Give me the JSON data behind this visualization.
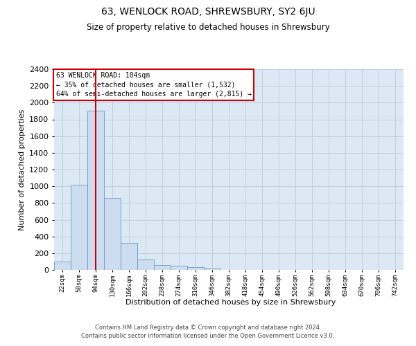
{
  "title": "63, WENLOCK ROAD, SHREWSBURY, SY2 6JU",
  "subtitle": "Size of property relative to detached houses in Shrewsbury",
  "xlabel": "Distribution of detached houses by size in Shrewsbury",
  "ylabel": "Number of detached properties",
  "bar_color": "#cddcee",
  "bar_edge_color": "#6699cc",
  "grid_color": "#b8cce0",
  "background_color": "#dce9f5",
  "property_line_color": "#cc0000",
  "annotation_box_color": "#cc0000",
  "categories": [
    "22sqm",
    "58sqm",
    "94sqm",
    "130sqm",
    "166sqm",
    "202sqm",
    "238sqm",
    "274sqm",
    "310sqm",
    "346sqm",
    "382sqm",
    "418sqm",
    "454sqm",
    "490sqm",
    "526sqm",
    "562sqm",
    "598sqm",
    "634sqm",
    "670sqm",
    "706sqm",
    "742sqm"
  ],
  "values": [
    100,
    1020,
    1900,
    860,
    320,
    125,
    60,
    52,
    30,
    20,
    0,
    0,
    0,
    0,
    0,
    0,
    0,
    0,
    0,
    0,
    0
  ],
  "ylim": [
    0,
    2400
  ],
  "yticks": [
    0,
    200,
    400,
    600,
    800,
    1000,
    1200,
    1400,
    1600,
    1800,
    2000,
    2200,
    2400
  ],
  "property_label": "63 WENLOCK ROAD: 104sqm",
  "annotation_line1": "← 35% of detached houses are smaller (1,532)",
  "annotation_line2": "64% of semi-detached houses are larger (2,815) →",
  "property_line_x": 2.0,
  "footer_line1": "Contains HM Land Registry data © Crown copyright and database right 2024.",
  "footer_line2": "Contains public sector information licensed under the Open Government Licence v3.0."
}
